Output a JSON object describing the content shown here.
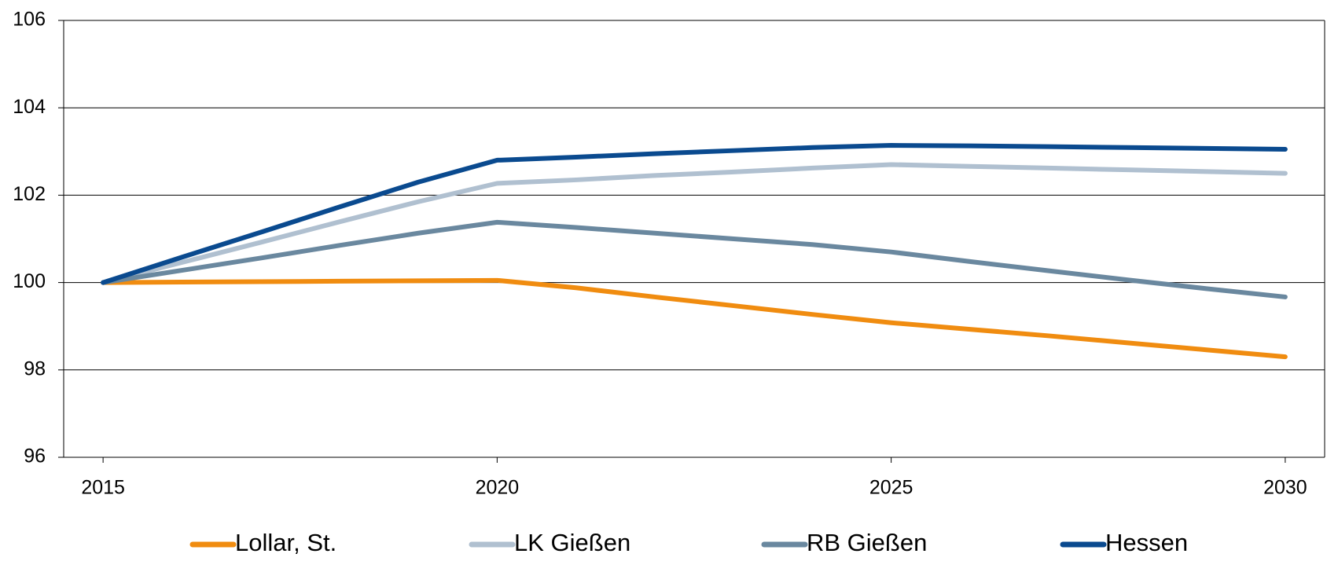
{
  "chart_data": {
    "type": "line",
    "x": [
      2015,
      2016,
      2017,
      2018,
      2019,
      2020,
      2021,
      2022,
      2023,
      2024,
      2025,
      2026,
      2027,
      2028,
      2029,
      2030
    ],
    "series": [
      {
        "name": "Lollar, St.",
        "color": "#f08c10",
        "values": [
          100,
          100.01,
          100.02,
          100.03,
          100.04,
          100.05,
          99.88,
          99.67,
          99.47,
          99.27,
          99.08,
          98.93,
          98.78,
          98.62,
          98.46,
          98.3
        ]
      },
      {
        "name": "LK Gießen",
        "color": "#b0c0d0",
        "values": [
          100,
          100.46,
          100.92,
          101.39,
          101.85,
          102.27,
          102.35,
          102.45,
          102.53,
          102.62,
          102.7,
          102.66,
          102.62,
          102.58,
          102.54,
          102.5
        ]
      },
      {
        "name": "RB Gießen",
        "color": "#6a889f",
        "values": [
          100,
          100.28,
          100.56,
          100.85,
          101.13,
          101.38,
          101.26,
          101.13,
          101.0,
          100.87,
          100.7,
          100.48,
          100.27,
          100.06,
          99.86,
          99.67
        ]
      },
      {
        "name": "Hessen",
        "color": "#0a4a8f",
        "values": [
          100,
          100.58,
          101.15,
          101.73,
          102.3,
          102.8,
          102.87,
          102.95,
          103.02,
          103.09,
          103.14,
          103.13,
          103.11,
          103.09,
          103.07,
          103.05
        ]
      }
    ],
    "xlim": [
      2014.5,
      2030.5
    ],
    "xticks": [
      2015,
      2020,
      2025,
      2030
    ],
    "ylim": [
      96,
      106
    ],
    "yticks": [
      96,
      98,
      100,
      102,
      104,
      106
    ],
    "grid": true
  }
}
